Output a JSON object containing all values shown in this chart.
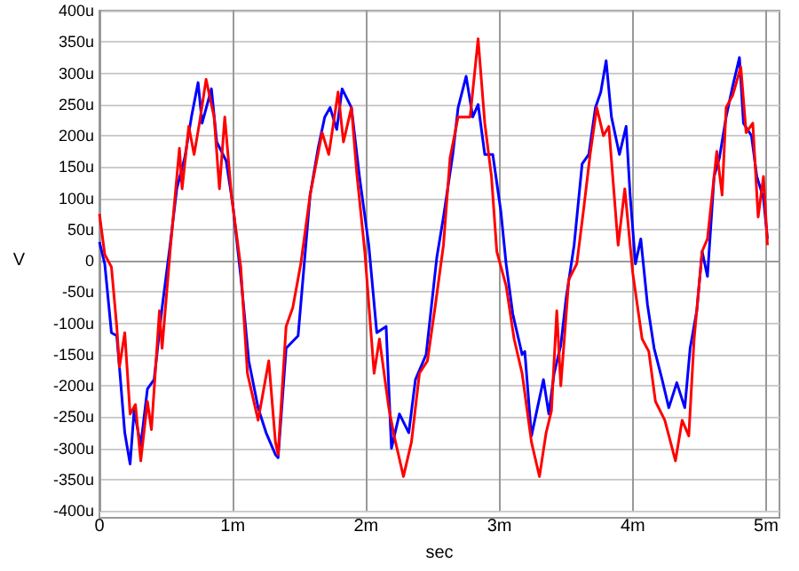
{
  "chart_data": {
    "type": "line",
    "xlabel": "sec",
    "ylabel": "V",
    "xlim": [
      0,
      5.1
    ],
    "ylim": [
      -400,
      400
    ],
    "xticks": [
      0,
      {
        "value": 1,
        "label": "1m"
      },
      {
        "value": 2,
        "label": "2m"
      },
      {
        "value": 3,
        "label": "3m"
      },
      {
        "value": 4,
        "label": "4m"
      },
      {
        "value": 5,
        "label": "5m"
      }
    ],
    "yticks": [
      {
        "value": -400,
        "label": "-400u"
      },
      {
        "value": -350,
        "label": "-350u"
      },
      {
        "value": -300,
        "label": "-300u"
      },
      {
        "value": -250,
        "label": "-250u"
      },
      {
        "value": -200,
        "label": "-200u"
      },
      {
        "value": -150,
        "label": "-150u"
      },
      {
        "value": -100,
        "label": "-100u"
      },
      {
        "value": -50,
        "label": "-50u"
      },
      0,
      {
        "value": 50,
        "label": "50u"
      },
      {
        "value": 100,
        "label": "100u"
      },
      {
        "value": 150,
        "label": "150u"
      },
      {
        "value": 200,
        "label": "200u"
      },
      {
        "value": 250,
        "label": "250u"
      },
      {
        "value": 300,
        "label": "300u"
      },
      {
        "value": 350,
        "label": "350u"
      },
      {
        "value": 400,
        "label": "400u"
      }
    ],
    "grid": true,
    "series": [
      {
        "color": "#0000ff",
        "x": [
          0,
          0.04,
          0.09,
          0.13,
          0.15,
          0.19,
          0.23,
          0.26,
          0.31,
          0.36,
          0.41,
          0.47,
          0.53,
          0.58,
          0.64,
          0.69,
          0.74,
          0.77,
          0.84,
          0.88,
          0.95,
          1.0,
          1.06,
          1.12,
          1.19,
          1.25,
          1.32,
          1.34,
          1.4,
          1.49,
          1.58,
          1.64,
          1.69,
          1.73,
          1.78,
          1.82,
          1.89,
          1.95,
          2.02,
          2.08,
          2.15,
          2.19,
          2.25,
          2.32,
          2.37,
          2.45,
          2.53,
          2.58,
          2.65,
          2.69,
          2.75,
          2.8,
          2.84,
          2.89,
          2.95,
          3.01,
          3.05,
          3.1,
          3.17,
          3.19,
          3.24,
          3.33,
          3.37,
          3.41,
          3.46,
          3.5,
          3.56,
          3.62,
          3.67,
          3.72,
          3.76,
          3.8,
          3.84,
          3.9,
          3.95,
          3.98,
          4.02,
          4.06,
          4.11,
          4.16,
          4.22,
          4.27,
          4.33,
          4.39,
          4.43,
          4.48,
          4.52,
          4.56,
          4.61,
          4.65,
          4.7,
          4.75,
          4.8,
          4.83,
          4.89,
          4.93,
          4.98,
          5.01
        ],
        "values": [
          30,
          -5,
          -115,
          -120,
          -170,
          -275,
          -325,
          -240,
          -295,
          -205,
          -190,
          -75,
          25,
          115,
          165,
          230,
          285,
          220,
          275,
          190,
          160,
          90,
          -25,
          -160,
          -235,
          -275,
          -310,
          -315,
          -140,
          -120,
          105,
          180,
          230,
          245,
          210,
          275,
          245,
          135,
          25,
          -115,
          -105,
          -300,
          -245,
          -275,
          -190,
          -150,
          5,
          70,
          170,
          245,
          295,
          230,
          250,
          170,
          170,
          80,
          -5,
          -85,
          -150,
          -145,
          -280,
          -190,
          -245,
          -180,
          -135,
          -60,
          25,
          155,
          170,
          245,
          270,
          320,
          230,
          170,
          215,
          105,
          -5,
          35,
          -70,
          -140,
          -190,
          -235,
          -195,
          -235,
          -140,
          -80,
          15,
          -25,
          135,
          165,
          230,
          280,
          325,
          220,
          200,
          135,
          100,
          35
        ]
      },
      {
        "color": "#ff0000",
        "x": [
          0,
          0.04,
          0.09,
          0.13,
          0.15,
          0.19,
          0.23,
          0.27,
          0.31,
          0.36,
          0.39,
          0.45,
          0.47,
          0.53,
          0.6,
          0.62,
          0.67,
          0.71,
          0.75,
          0.8,
          0.86,
          0.9,
          0.94,
          0.99,
          1.06,
          1.11,
          1.19,
          1.27,
          1.32,
          1.34,
          1.4,
          1.45,
          1.51,
          1.58,
          1.67,
          1.72,
          1.79,
          1.83,
          1.89,
          1.93,
          1.99,
          2.06,
          2.1,
          2.17,
          2.21,
          2.28,
          2.34,
          2.4,
          2.46,
          2.52,
          2.58,
          2.63,
          2.69,
          2.78,
          2.84,
          2.89,
          2.94,
          2.98,
          3.05,
          3.11,
          3.17,
          3.24,
          3.3,
          3.35,
          3.39,
          3.43,
          3.46,
          3.52,
          3.58,
          3.63,
          3.68,
          3.73,
          3.78,
          3.82,
          3.89,
          3.94,
          4.0,
          4.07,
          4.12,
          4.17,
          4.24,
          4.32,
          4.37,
          4.42,
          4.46,
          4.52,
          4.56,
          4.63,
          4.67,
          4.7,
          4.75,
          4.81,
          4.85,
          4.9,
          4.94,
          4.98,
          5.01
        ],
        "values": [
          75,
          10,
          -10,
          -105,
          -170,
          -115,
          -245,
          -230,
          -320,
          -225,
          -270,
          -80,
          -140,
          15,
          180,
          115,
          215,
          170,
          220,
          290,
          230,
          115,
          230,
          105,
          -10,
          -180,
          -255,
          -160,
          -290,
          -310,
          -105,
          -75,
          -5,
          105,
          205,
          170,
          270,
          190,
          245,
          140,
          15,
          -180,
          -125,
          -235,
          -280,
          -345,
          -290,
          -180,
          -160,
          -70,
          25,
          165,
          230,
          230,
          355,
          220,
          135,
          15,
          -40,
          -125,
          -180,
          -290,
          -345,
          -275,
          -240,
          -80,
          -200,
          -30,
          -5,
          80,
          170,
          245,
          200,
          215,
          25,
          115,
          -20,
          -125,
          -145,
          -225,
          -255,
          -320,
          -255,
          -280,
          -125,
          15,
          35,
          175,
          105,
          245,
          265,
          310,
          205,
          220,
          70,
          135,
          25
        ]
      }
    ]
  }
}
